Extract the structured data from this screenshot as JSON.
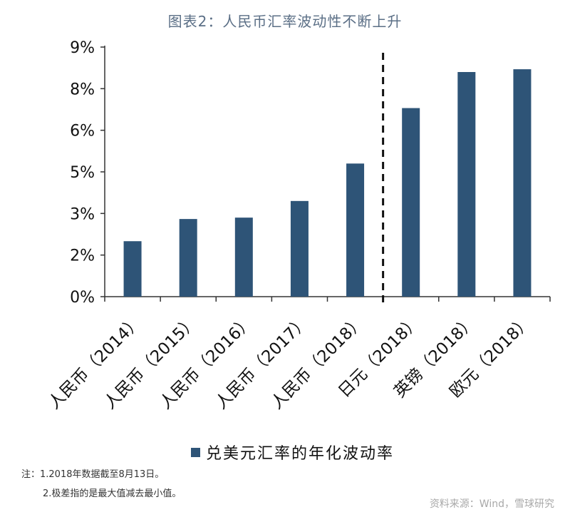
{
  "title": "图表2：人民币汇率波动性不断上升",
  "chart_data": {
    "type": "bar",
    "categories": [
      "人民币（2014）",
      "人民币（2015）",
      "人民币（2016）",
      "人民币（2017）",
      "人民币（2018）",
      "日元（2018）",
      "英镑（2018）",
      "欧元（2018）"
    ],
    "series": [
      {
        "name": "兑美元汇率的年化波动率",
        "values": [
          2.0,
          2.8,
          2.85,
          3.45,
          4.8,
          6.8,
          8.1,
          8.2
        ]
      }
    ],
    "y_ticks": [
      "0%",
      "2%",
      "3%",
      "5%",
      "6%",
      "8%",
      "9%"
    ],
    "ylim": [
      0,
      9
    ],
    "xlabel": "",
    "ylabel": "",
    "legend_position": "bottom",
    "grid": false,
    "bar_color": "#2e5477",
    "divider_after_category": 4
  },
  "notes": [
    "注：1.2018年数据截至8月13日。",
    "2.极差指的是最大值减去最小值。"
  ],
  "watermark": "资料来源：Wind，雪球研究"
}
